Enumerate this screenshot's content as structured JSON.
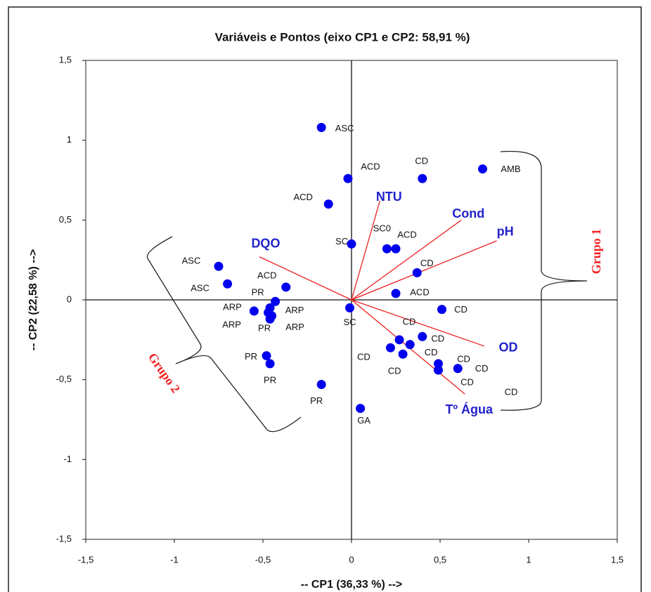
{
  "chart_data": {
    "type": "scatter",
    "title": "Variáveis e Pontos (eixo CP1 e CP2: 58,91 %)",
    "x_label": "-- CP1 (36,33 %) -->",
    "y_label": "-- CP2 (22,58 %) -->",
    "xlim": [
      -1.5,
      1.5
    ],
    "ylim": [
      -1.5,
      1.5
    ],
    "xticks": [
      {
        "value": -1.5,
        "label": "-1,5"
      },
      -1,
      {
        "value": -0.5,
        "label": "-0,5"
      },
      0,
      {
        "value": 0.5,
        "label": "0,5"
      },
      1,
      {
        "value": 1.5,
        "label": "1,5"
      }
    ],
    "yticks": [
      {
        "value": -1.5,
        "label": "-1,5"
      },
      -1,
      {
        "value": -0.5,
        "label": "-0,5"
      },
      0,
      {
        "value": 0.5,
        "label": "0,5"
      },
      1,
      {
        "value": 1.5,
        "label": "1,5"
      }
    ],
    "points": {
      "color": "#0000ee",
      "labels": [
        "ASC",
        "ACD",
        "CD",
        "AMB",
        "ACD",
        "SC",
        "SC0",
        "ACD",
        "CD",
        "ACD",
        "CD",
        "ASC",
        "ASC",
        "ACD",
        "PR",
        "ARP",
        "ARP",
        "ARP",
        "PR",
        "ARP",
        "SC",
        "PR",
        "PR",
        "PR",
        "GA",
        "CD",
        "CD",
        "CD",
        "CD",
        "CD",
        "CD",
        "CD",
        "CD"
      ],
      "x": [
        -0.17,
        -0.02,
        0.4,
        0.74,
        -0.13,
        0.0,
        0.2,
        0.25,
        0.37,
        0.25,
        0.51,
        -0.75,
        -0.7,
        -0.37,
        -0.43,
        -0.46,
        -0.55,
        -0.47,
        -0.46,
        -0.45,
        -0.01,
        -0.48,
        -0.46,
        -0.17,
        0.05,
        0.4,
        0.27,
        0.33,
        0.22,
        0.29,
        0.49,
        0.49,
        0.6
      ],
      "values": [
        1.08,
        0.76,
        0.76,
        0.82,
        0.6,
        0.35,
        0.32,
        0.32,
        0.17,
        0.04,
        -0.06,
        0.21,
        0.1,
        0.08,
        -0.01,
        -0.05,
        -0.07,
        -0.08,
        -0.12,
        -0.1,
        -0.05,
        -0.35,
        -0.4,
        -0.53,
        -0.68,
        -0.23,
        -0.25,
        -0.28,
        -0.3,
        -0.34,
        -0.4,
        -0.44,
        -0.43
      ]
    },
    "vectors": {
      "color": "#ee2222",
      "label_color": "#2222cc",
      "names": [
        "NTU",
        "Cond",
        "pH",
        "DQO",
        "OD",
        "Tº Água"
      ],
      "x": [
        0.16,
        0.62,
        0.82,
        -0.52,
        0.75,
        0.64
      ],
      "values": [
        0.62,
        0.5,
        0.37,
        0.27,
        -0.29,
        -0.59
      ]
    },
    "annotations": [
      "Grupo 1",
      "Grupo 2",
      "CD"
    ]
  }
}
